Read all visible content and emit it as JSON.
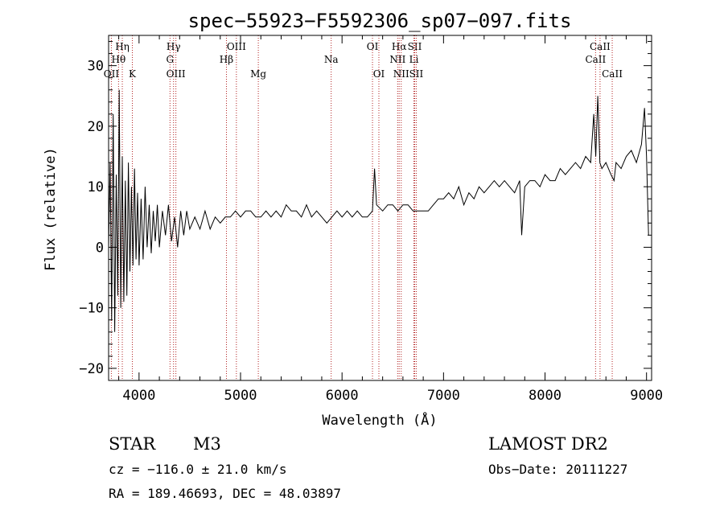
{
  "chart_data": {
    "type": "line",
    "title": "spec−55923−F5592306_sp07−097.fits",
    "xlabel": "Wavelength (Å)",
    "ylabel": "Flux (relative)",
    "xlim": [
      3700,
      9050
    ],
    "ylim": [
      -22,
      35
    ],
    "xticks": [
      4000,
      5000,
      6000,
      7000,
      8000,
      9000
    ],
    "yticks": [
      -20,
      -10,
      0,
      10,
      20,
      30
    ],
    "ytick_labels": [
      "−20",
      "−10",
      "0",
      "10",
      "20",
      "30"
    ],
    "series": [
      {
        "values_approx": [
          [
            3700,
            0
          ],
          [
            3715,
            14
          ],
          [
            3730,
            -12
          ],
          [
            3745,
            22
          ],
          [
            3760,
            -14
          ],
          [
            3775,
            12
          ],
          [
            3790,
            -8
          ],
          [
            3805,
            26
          ],
          [
            3820,
            -10
          ],
          [
            3835,
            15
          ],
          [
            3850,
            -9
          ],
          [
            3865,
            11
          ],
          [
            3880,
            -8
          ],
          [
            3895,
            14
          ],
          [
            3910,
            -4
          ],
          [
            3925,
            10
          ],
          [
            3940,
            -3
          ],
          [
            3955,
            13
          ],
          [
            3970,
            -2
          ],
          [
            3985,
            9
          ],
          [
            4000,
            -3
          ],
          [
            4020,
            8
          ],
          [
            4040,
            -2
          ],
          [
            4060,
            10
          ],
          [
            4080,
            0
          ],
          [
            4100,
            7
          ],
          [
            4120,
            -1
          ],
          [
            4140,
            6
          ],
          [
            4160,
            1
          ],
          [
            4180,
            7
          ],
          [
            4200,
            0
          ],
          [
            4230,
            6
          ],
          [
            4260,
            2
          ],
          [
            4290,
            7
          ],
          [
            4320,
            1
          ],
          [
            4350,
            5
          ],
          [
            4380,
            0
          ],
          [
            4410,
            6
          ],
          [
            4440,
            2
          ],
          [
            4470,
            6
          ],
          [
            4500,
            3
          ],
          [
            4550,
            5
          ],
          [
            4600,
            3
          ],
          [
            4650,
            6
          ],
          [
            4700,
            3
          ],
          [
            4750,
            5
          ],
          [
            4800,
            4
          ],
          [
            4850,
            5
          ],
          [
            4900,
            5
          ],
          [
            4950,
            6
          ],
          [
            5000,
            5
          ],
          [
            5050,
            6
          ],
          [
            5100,
            6
          ],
          [
            5150,
            5
          ],
          [
            5200,
            5
          ],
          [
            5250,
            6
          ],
          [
            5300,
            5
          ],
          [
            5350,
            6
          ],
          [
            5400,
            5
          ],
          [
            5450,
            7
          ],
          [
            5500,
            6
          ],
          [
            5550,
            6
          ],
          [
            5600,
            5
          ],
          [
            5650,
            7
          ],
          [
            5700,
            5
          ],
          [
            5750,
            6
          ],
          [
            5800,
            5
          ],
          [
            5850,
            4
          ],
          [
            5900,
            5
          ],
          [
            5950,
            6
          ],
          [
            6000,
            5
          ],
          [
            6050,
            6
          ],
          [
            6100,
            5
          ],
          [
            6150,
            6
          ],
          [
            6200,
            5
          ],
          [
            6250,
            5
          ],
          [
            6300,
            6
          ],
          [
            6320,
            13
          ],
          [
            6340,
            7
          ],
          [
            6400,
            6
          ],
          [
            6450,
            7
          ],
          [
            6500,
            7
          ],
          [
            6550,
            6
          ],
          [
            6600,
            7
          ],
          [
            6650,
            7
          ],
          [
            6700,
            6
          ],
          [
            6750,
            6
          ],
          [
            6800,
            6
          ],
          [
            6850,
            6
          ],
          [
            6900,
            7
          ],
          [
            6950,
            8
          ],
          [
            7000,
            8
          ],
          [
            7050,
            9
          ],
          [
            7100,
            8
          ],
          [
            7150,
            10
          ],
          [
            7200,
            7
          ],
          [
            7250,
            9
          ],
          [
            7300,
            8
          ],
          [
            7350,
            10
          ],
          [
            7400,
            9
          ],
          [
            7450,
            10
          ],
          [
            7500,
            11
          ],
          [
            7550,
            10
          ],
          [
            7600,
            11
          ],
          [
            7650,
            10
          ],
          [
            7700,
            9
          ],
          [
            7750,
            11
          ],
          [
            7770,
            2
          ],
          [
            7800,
            10
          ],
          [
            7850,
            11
          ],
          [
            7900,
            11
          ],
          [
            7950,
            10
          ],
          [
            8000,
            12
          ],
          [
            8050,
            11
          ],
          [
            8100,
            11
          ],
          [
            8150,
            13
          ],
          [
            8200,
            12
          ],
          [
            8250,
            13
          ],
          [
            8300,
            14
          ],
          [
            8350,
            13
          ],
          [
            8400,
            15
          ],
          [
            8450,
            14
          ],
          [
            8480,
            22
          ],
          [
            8500,
            15
          ],
          [
            8520,
            25
          ],
          [
            8540,
            14
          ],
          [
            8560,
            13
          ],
          [
            8600,
            14
          ],
          [
            8650,
            12
          ],
          [
            8680,
            11
          ],
          [
            8700,
            14
          ],
          [
            8750,
            13
          ],
          [
            8800,
            15
          ],
          [
            8850,
            16
          ],
          [
            8900,
            14
          ],
          [
            8950,
            17
          ],
          [
            8980,
            23
          ],
          [
            9000,
            15
          ],
          [
            9020,
            2
          ]
        ]
      }
    ],
    "lines": [
      {
        "label": "OII",
        "w": 3727,
        "row": 3
      },
      {
        "label": "Hη",
        "w": 3835,
        "row": 1
      },
      {
        "label": "Hθ",
        "w": 3798,
        "row": 2
      },
      {
        "label": "K",
        "w": 3934,
        "row": 3
      },
      {
        "label": "Hγ",
        "w": 4340,
        "row": 1
      },
      {
        "label": "G",
        "w": 4305,
        "row": 2
      },
      {
        "label": "OIII",
        "w": 4363,
        "row": 3
      },
      {
        "label": "OIII",
        "w": 4959,
        "row": 1
      },
      {
        "label": "Hβ",
        "w": 4861,
        "row": 2
      },
      {
        "label": "Mg",
        "w": 5175,
        "row": 3
      },
      {
        "label": "Na",
        "w": 5893,
        "row": 2
      },
      {
        "label": "OI",
        "w": 6300,
        "row": 1
      },
      {
        "label": "OI",
        "w": 6363,
        "row": 3
      },
      {
        "label": "Hα",
        "w": 6563,
        "row": 1
      },
      {
        "label": "NII",
        "w": 6548,
        "row": 2
      },
      {
        "label": "NII",
        "w": 6583,
        "row": 3
      },
      {
        "label": "SII",
        "w": 6716,
        "row": 1
      },
      {
        "label": "Li",
        "w": 6708,
        "row": 2
      },
      {
        "label": "SII",
        "w": 6731,
        "row": 3
      },
      {
        "label": "CaII",
        "w": 8542,
        "row": 1
      },
      {
        "label": "CaII",
        "w": 8498,
        "row": 2
      },
      {
        "label": "CaII",
        "w": 8662,
        "row": 3
      }
    ],
    "grid": false,
    "legend": "none"
  },
  "info": {
    "object_class": "STAR",
    "subclass": "M3",
    "survey": "LAMOST DR2",
    "cz": "cz = −116.0 ± 21.0 km/s",
    "obs_date": "Obs−Date: 20111227",
    "radec": "RA = 189.46693, DEC =  48.03897"
  },
  "colors": {
    "spectrum": "#000000",
    "line_marker": "#b22222"
  }
}
